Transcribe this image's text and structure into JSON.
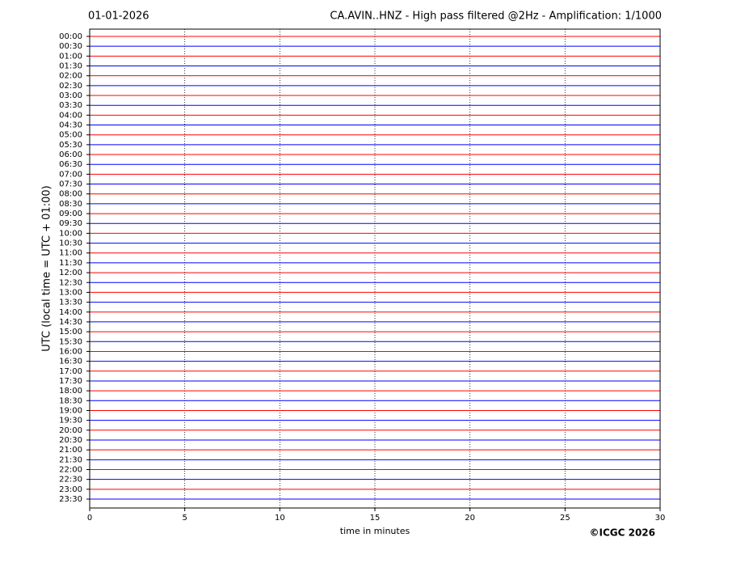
{
  "chart_data": {
    "type": "helicorder",
    "date": "01-01-2026",
    "title": "CA.AVIN..HNZ - High pass filtered @2Hz - Amplification: 1/1000",
    "ylabel": "UTC (local time = UTC + 01:00)",
    "xlabel": "time in minutes",
    "copyright": "©ICGC 2026",
    "categories": [
      "00:00",
      "00:30",
      "01:00",
      "01:30",
      "02:00",
      "02:30",
      "03:00",
      "03:30",
      "04:00",
      "04:30",
      "05:00",
      "05:30",
      "06:00",
      "06:30",
      "07:00",
      "07:30",
      "08:00",
      "08:30",
      "09:00",
      "09:30",
      "10:00",
      "10:30",
      "11:00",
      "11:30",
      "12:00",
      "12:30",
      "13:00",
      "13:30",
      "14:00",
      "14:30",
      "15:00",
      "15:30",
      "16:00",
      "16:30",
      "17:00",
      "17:30",
      "18:00",
      "18:30",
      "19:00",
      "19:30",
      "20:00",
      "20:30",
      "21:00",
      "21:30",
      "22:00",
      "22:30",
      "23:00",
      "23:30"
    ],
    "colors": [
      "#ff0000",
      "#0000ff"
    ],
    "xlim": [
      0,
      30
    ],
    "xticks": [
      0,
      5,
      10,
      15,
      20,
      25,
      30
    ],
    "grid": true
  }
}
